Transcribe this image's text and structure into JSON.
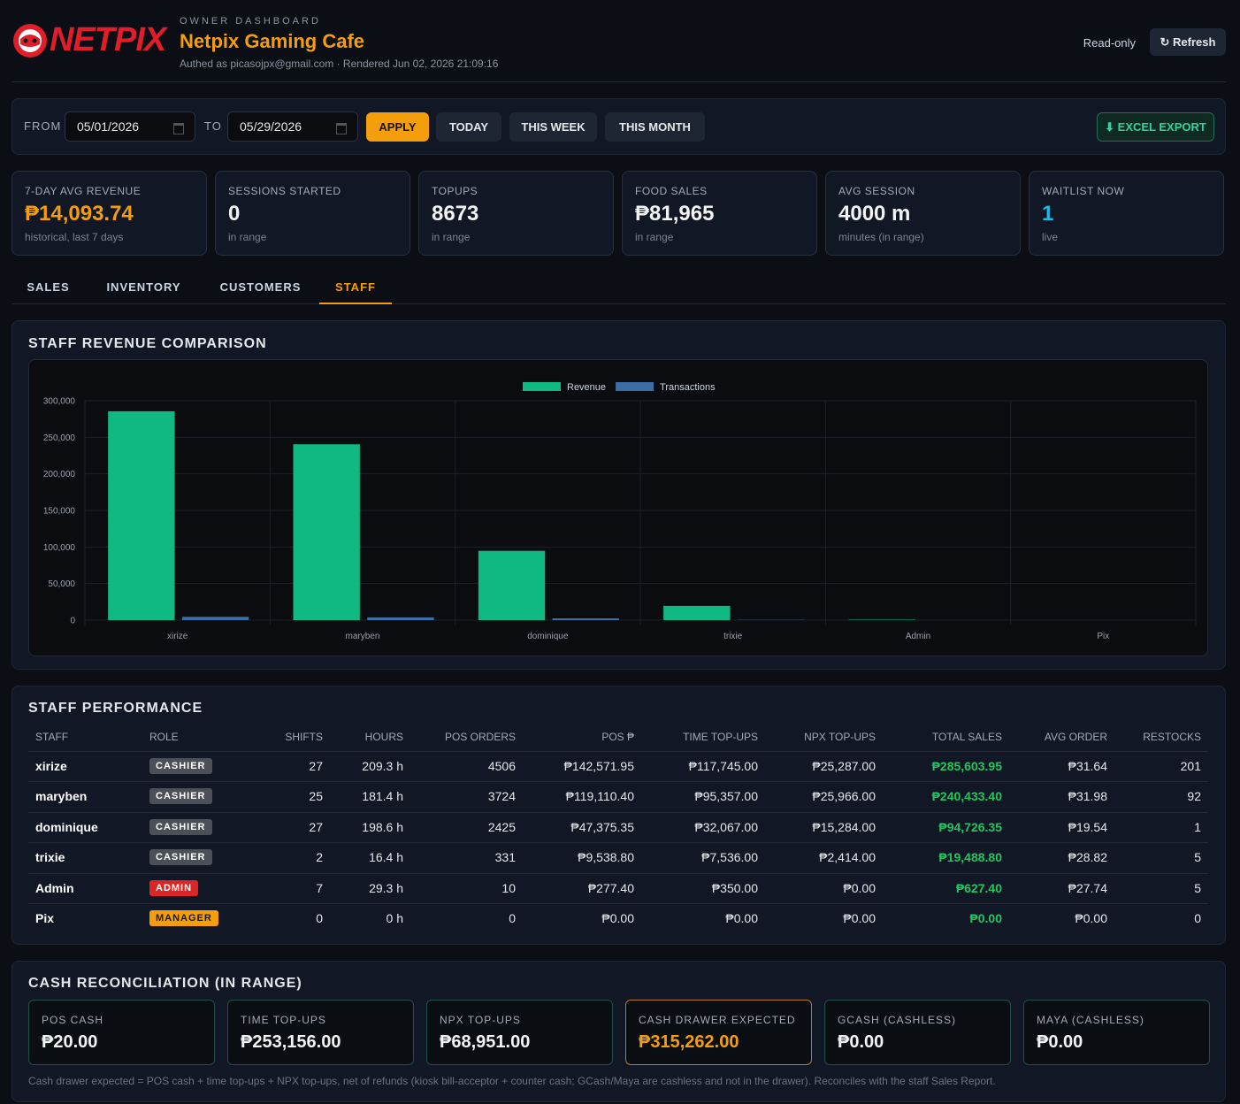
{
  "header": {
    "logo": "NETPIX",
    "eyebrow": "OWNER DASHBOARD",
    "title": "Netpix Gaming Cafe",
    "subtitle": "Authed as picasojpx@gmail.com · Rendered Jun 02, 2026 21:09:16",
    "mode": "Read-only",
    "refresh": "↻ Refresh"
  },
  "filters": {
    "from_label": "FROM",
    "from": "05/01/2026",
    "to_label": "TO",
    "to": "05/29/2026",
    "buttons": [
      "APPLY",
      "TODAY",
      "THIS WEEK",
      "THIS MONTH"
    ],
    "export": "⬇ EXCEL EXPORT"
  },
  "kpis": [
    {
      "label": "7-DAY AVG REVENUE",
      "value": "₱14,093.74",
      "note": "historical, last 7 days"
    },
    {
      "label": "SESSIONS STARTED",
      "value": "0",
      "note": "in range"
    },
    {
      "label": "TOPUPS",
      "value": "8673",
      "note": "in range"
    },
    {
      "label": "FOOD SALES",
      "value": "₱81,965",
      "note": "in range"
    },
    {
      "label": "AVG SESSION",
      "value": "4000 m",
      "note": "minutes (in range)"
    },
    {
      "label": "WAITLIST NOW",
      "value": "1",
      "note": "live"
    }
  ],
  "tabs": [
    "SALES",
    "INVENTORY",
    "CUSTOMERS",
    "STAFF"
  ],
  "chart_data": {
    "type": "bar",
    "title": "STAFF REVENUE COMPARISON",
    "categories": [
      "xirize",
      "maryben",
      "dominique",
      "trixie",
      "Admin",
      "Pix"
    ],
    "series": [
      {
        "name": "Revenue",
        "color": "#10b981",
        "values": [
          285603.95,
          240433.4,
          94726.35,
          19488.8,
          627.4,
          0
        ]
      },
      {
        "name": "Transactions",
        "color": "#3b6ea5",
        "values": [
          4506,
          3724,
          2425,
          331,
          10,
          0
        ]
      }
    ],
    "ylim": [
      0,
      300000
    ],
    "yticks": [
      0,
      {
        "value": 50000,
        "label": "50,000"
      },
      {
        "value": 100000,
        "label": "100,000"
      },
      {
        "value": 150000,
        "label": "150,000"
      },
      {
        "value": 200000,
        "label": "200,000"
      },
      {
        "value": 250000,
        "label": "250,000"
      },
      {
        "value": 300000,
        "label": "300,000"
      }
    ],
    "grid": true,
    "legend": "top"
  },
  "staff_table": {
    "title": "STAFF PERFORMANCE",
    "columns": [
      "STAFF",
      "ROLE",
      "SHIFTS",
      "HOURS",
      "POS ORDERS",
      "POS ₱",
      "TIME TOP-UPS",
      "NPX TOP-UPS",
      "TOTAL SALES",
      "AVG ORDER",
      "RESTOCKS"
    ],
    "rows": [
      [
        "xirize",
        "CASHIER",
        "27",
        "209.3 h",
        "4506",
        "₱142,571.95",
        "₱117,745.00",
        "₱25,287.00",
        "₱285,603.95",
        "₱31.64",
        "201"
      ],
      [
        "maryben",
        "CASHIER",
        "25",
        "181.4 h",
        "3724",
        "₱119,110.40",
        "₱95,357.00",
        "₱25,966.00",
        "₱240,433.40",
        "₱31.98",
        "92"
      ],
      [
        "dominique",
        "CASHIER",
        "27",
        "198.6 h",
        "2425",
        "₱47,375.35",
        "₱32,067.00",
        "₱15,284.00",
        "₱94,726.35",
        "₱19.54",
        "1"
      ],
      [
        "trixie",
        "CASHIER",
        "2",
        "16.4 h",
        "331",
        "₱9,538.80",
        "₱7,536.00",
        "₱2,414.00",
        "₱19,488.80",
        "₱28.82",
        "5"
      ],
      [
        "Admin",
        "ADMIN",
        "7",
        "29.3 h",
        "10",
        "₱277.40",
        "₱350.00",
        "₱0.00",
        "₱627.40",
        "₱27.74",
        "5"
      ],
      [
        "Pix",
        "MANAGER",
        "0",
        "0 h",
        "0",
        "₱0.00",
        "₱0.00",
        "₱0.00",
        "₱0.00",
        "₱0.00",
        "0"
      ]
    ],
    "role_colors": [
      "#4b5058",
      "#4b5058",
      "#4b5058",
      "#4b5058",
      "#dc2626",
      "#f59e0b"
    ]
  },
  "cash": {
    "title": "CASH RECONCILIATION (IN RANGE)",
    "cards": [
      {
        "label": "POS CASH",
        "value": "₱20.00"
      },
      {
        "label": "TIME TOP-UPS",
        "value": "₱253,156.00"
      },
      {
        "label": "NPX TOP-UPS",
        "value": "₱68,951.00"
      },
      {
        "label": "CASH DRAWER EXPECTED",
        "value": "₱315,262.00"
      },
      {
        "label": "GCASH (CASHLESS)",
        "value": "₱0.00"
      },
      {
        "label": "MAYA (CASHLESS)",
        "value": "₱0.00"
      }
    ],
    "note": "Cash drawer expected = POS cash + time top-ups + NPX top-ups, net of refunds (kiosk bill-acceptor + counter cash; GCash/Maya are cashless and not in the drawer). Reconciles with the staff Sales Report."
  }
}
